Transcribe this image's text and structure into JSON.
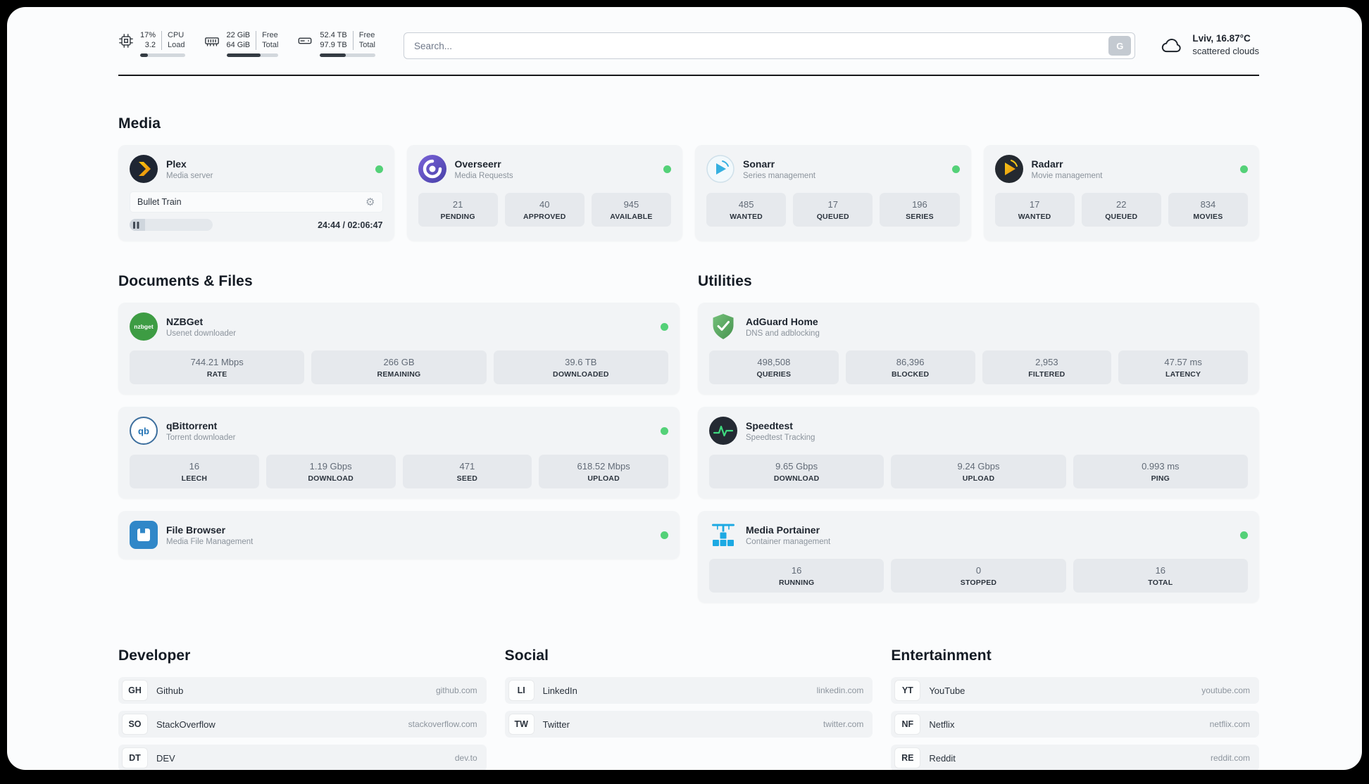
{
  "colors": {
    "status_online": "#54d178",
    "accent_blue": "#1ca9e3",
    "plex_gold": "#e5a00d"
  },
  "topbar": {
    "cpu": {
      "value_top": "17%",
      "value_bottom": "3.2",
      "label_top": "CPU",
      "label_bottom": "Load",
      "progress_percent": 17
    },
    "memory": {
      "value_top": "22 GiB",
      "value_bottom": "64 GiB",
      "label_top": "Free",
      "label_bottom": "Total",
      "progress_percent": 66
    },
    "disk": {
      "value_top": "52.4 TB",
      "value_bottom": "97.9 TB",
      "label_top": "Free",
      "label_bottom": "Total",
      "progress_percent": 46
    },
    "search": {
      "placeholder": "Search...",
      "button_label": "G"
    },
    "weather": {
      "location_temp": "Lviv, 16.87°C",
      "condition": "scattered clouds"
    }
  },
  "media": {
    "title": "Media",
    "plex": {
      "name": "Plex",
      "subtitle": "Media server",
      "now_playing": "Bullet Train",
      "time": "24:44 / 02:06:47",
      "progress_percent": 19
    },
    "overseerr": {
      "name": "Overseerr",
      "subtitle": "Media Requests",
      "stats": [
        {
          "value": "21",
          "label": "PENDING"
        },
        {
          "value": "40",
          "label": "APPROVED"
        },
        {
          "value": "945",
          "label": "AVAILABLE"
        }
      ]
    },
    "sonarr": {
      "name": "Sonarr",
      "subtitle": "Series management",
      "stats": [
        {
          "value": "485",
          "label": "WANTED"
        },
        {
          "value": "17",
          "label": "QUEUED"
        },
        {
          "value": "196",
          "label": "SERIES"
        }
      ]
    },
    "radarr": {
      "name": "Radarr",
      "subtitle": "Movie management",
      "stats": [
        {
          "value": "17",
          "label": "WANTED"
        },
        {
          "value": "22",
          "label": "QUEUED"
        },
        {
          "value": "834",
          "label": "MOVIES"
        }
      ]
    }
  },
  "documents": {
    "title": "Documents & Files",
    "nzbget": {
      "name": "NZBGet",
      "subtitle": "Usenet downloader",
      "icon_text": "nzbget",
      "stats": [
        {
          "value": "744.21 Mbps",
          "label": "RATE"
        },
        {
          "value": "266 GB",
          "label": "REMAINING"
        },
        {
          "value": "39.6 TB",
          "label": "DOWNLOADED"
        }
      ]
    },
    "qbittorrent": {
      "name": "qBittorrent",
      "subtitle": "Torrent downloader",
      "icon_text": "qb",
      "stats": [
        {
          "value": "16",
          "label": "LEECH"
        },
        {
          "value": "1.19 Gbps",
          "label": "DOWNLOAD"
        },
        {
          "value": "471",
          "label": "SEED"
        },
        {
          "value": "618.52 Mbps",
          "label": "UPLOAD"
        }
      ]
    },
    "filebrowser": {
      "name": "File Browser",
      "subtitle": "Media File Management"
    }
  },
  "utilities": {
    "title": "Utilities",
    "adguard": {
      "name": "AdGuard Home",
      "subtitle": "DNS and adblocking",
      "stats": [
        {
          "value": "498,508",
          "label": "QUERIES"
        },
        {
          "value": "86,396",
          "label": "BLOCKED"
        },
        {
          "value": "2,953",
          "label": "FILTERED"
        },
        {
          "value": "47.57 ms",
          "label": "LATENCY"
        }
      ]
    },
    "speedtest": {
      "name": "Speedtest",
      "subtitle": "Speedtest Tracking",
      "stats": [
        {
          "value": "9.65 Gbps",
          "label": "DOWNLOAD"
        },
        {
          "value": "9.24 Gbps",
          "label": "UPLOAD"
        },
        {
          "value": "0.993 ms",
          "label": "PING"
        }
      ]
    },
    "portainer": {
      "name": "Media Portainer",
      "subtitle": "Container management",
      "stats": [
        {
          "value": "16",
          "label": "RUNNING"
        },
        {
          "value": "0",
          "label": "STOPPED"
        },
        {
          "value": "16",
          "label": "TOTAL"
        }
      ]
    }
  },
  "bookmarks": {
    "developer": {
      "title": "Developer",
      "items": [
        {
          "abbr": "GH",
          "name": "Github",
          "url": "github.com"
        },
        {
          "abbr": "SO",
          "name": "StackOverflow",
          "url": "stackoverflow.com"
        },
        {
          "abbr": "DT",
          "name": "DEV",
          "url": "dev.to"
        }
      ]
    },
    "social": {
      "title": "Social",
      "items": [
        {
          "abbr": "LI",
          "name": "LinkedIn",
          "url": "linkedin.com"
        },
        {
          "abbr": "TW",
          "name": "Twitter",
          "url": "twitter.com"
        }
      ]
    },
    "entertainment": {
      "title": "Entertainment",
      "items": [
        {
          "abbr": "YT",
          "name": "YouTube",
          "url": "youtube.com"
        },
        {
          "abbr": "NF",
          "name": "Netflix",
          "url": "netflix.com"
        },
        {
          "abbr": "RE",
          "name": "Reddit",
          "url": "reddit.com"
        }
      ]
    }
  }
}
